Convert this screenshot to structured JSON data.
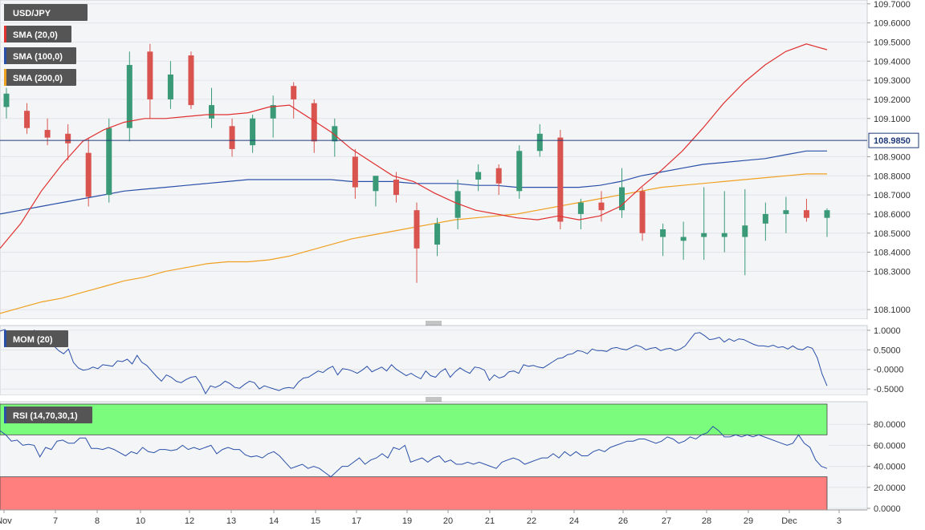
{
  "chart_data": [
    {
      "type": "candlestick",
      "symbol": "USD/JPY",
      "current_price": "108.9850",
      "ylim": [
        108.05,
        109.72
      ],
      "yticks": [
        "109.7000",
        "109.6000",
        "109.5000",
        "109.4000",
        "109.3000",
        "109.2000",
        "109.1000",
        "108.9000",
        "108.8000",
        "108.7000",
        "108.6000",
        "108.5000",
        "108.4000",
        "108.3000",
        "108.1000"
      ],
      "ytick_values": [
        109.7,
        109.6,
        109.5,
        109.4,
        109.3,
        109.2,
        109.1,
        108.9,
        108.8,
        108.7,
        108.6,
        108.5,
        108.4,
        108.3,
        108.1
      ],
      "xticks": [
        "Nov",
        "7",
        "8",
        "10",
        "12",
        "13",
        "14",
        "15",
        "17",
        "19",
        "20",
        "21",
        "22",
        "24",
        "26",
        "27",
        "28",
        "29",
        "Dec",
        "3"
      ],
      "legend": [
        {
          "label": "USD/JPY",
          "color": "#555555"
        },
        {
          "label": "SMA (20,0)",
          "color": "#e03030"
        },
        {
          "label": "SMA (100,0)",
          "color": "#2a4fa8"
        },
        {
          "label": "SMA (200,0)",
          "color": "#f0a020"
        }
      ],
      "colors": {
        "up": "#3a9a78",
        "down": "#d9534f",
        "sma20": "#e03030",
        "sma100": "#2a4fa8",
        "sma200": "#f0a020",
        "price_line": "#1e3a78"
      },
      "sma20": [
        108.42,
        108.55,
        108.72,
        108.86,
        108.98,
        109.04,
        109.08,
        109.1,
        109.1,
        109.11,
        109.12,
        109.12,
        109.13,
        109.16,
        109.17,
        109.1,
        109.03,
        108.94,
        108.87,
        108.8,
        108.77,
        108.71,
        108.66,
        108.62,
        108.6,
        108.58,
        108.57,
        108.59,
        108.57,
        108.59,
        108.64,
        108.74,
        108.83,
        108.93,
        109.05,
        109.18,
        109.29,
        109.38,
        109.45,
        109.49,
        109.46
      ],
      "sma100": [
        108.6,
        108.62,
        108.64,
        108.66,
        108.68,
        108.7,
        108.72,
        108.73,
        108.74,
        108.75,
        108.76,
        108.77,
        108.78,
        108.78,
        108.78,
        108.78,
        108.78,
        108.77,
        108.77,
        108.77,
        108.76,
        108.76,
        108.76,
        108.75,
        108.75,
        108.74,
        108.74,
        108.74,
        108.74,
        108.75,
        108.77,
        108.8,
        108.82,
        108.84,
        108.86,
        108.87,
        108.88,
        108.89,
        108.91,
        108.93,
        108.93
      ],
      "sma200": [
        108.08,
        108.11,
        108.14,
        108.16,
        108.19,
        108.22,
        108.25,
        108.27,
        108.3,
        108.32,
        108.34,
        108.35,
        108.35,
        108.36,
        108.38,
        108.41,
        108.44,
        108.47,
        108.49,
        108.51,
        108.53,
        108.55,
        108.57,
        108.58,
        108.59,
        108.6,
        108.62,
        108.64,
        108.66,
        108.68,
        108.7,
        108.72,
        108.74,
        108.75,
        108.76,
        108.77,
        108.78,
        108.79,
        108.8,
        108.81,
        108.81
      ],
      "candles": [
        {
          "o": 109.16,
          "h": 109.26,
          "l": 109.1,
          "c": 109.23
        },
        {
          "o": 109.14,
          "h": 109.18,
          "l": 109.02,
          "c": 109.05
        },
        {
          "o": 109.04,
          "h": 109.1,
          "l": 108.96,
          "c": 109.0
        },
        {
          "o": 109.02,
          "h": 109.07,
          "l": 108.88,
          "c": 108.97
        },
        {
          "o": 108.92,
          "h": 109.0,
          "l": 108.64,
          "c": 108.69
        },
        {
          "o": 108.7,
          "h": 109.1,
          "l": 108.66,
          "c": 109.05
        },
        {
          "o": 109.05,
          "h": 109.45,
          "l": 108.98,
          "c": 109.38
        },
        {
          "o": 109.45,
          "h": 109.49,
          "l": 109.1,
          "c": 109.2
        },
        {
          "o": 109.2,
          "h": 109.4,
          "l": 109.15,
          "c": 109.33
        },
        {
          "o": 109.43,
          "h": 109.45,
          "l": 109.15,
          "c": 109.17
        },
        {
          "o": 109.1,
          "h": 109.26,
          "l": 109.05,
          "c": 109.17
        },
        {
          "o": 109.06,
          "h": 109.1,
          "l": 108.9,
          "c": 108.94
        },
        {
          "o": 108.96,
          "h": 109.12,
          "l": 108.92,
          "c": 109.1
        },
        {
          "o": 109.1,
          "h": 109.22,
          "l": 109.0,
          "c": 109.17
        },
        {
          "o": 109.27,
          "h": 109.29,
          "l": 109.1,
          "c": 109.2
        },
        {
          "o": 109.18,
          "h": 109.2,
          "l": 108.92,
          "c": 108.98
        },
        {
          "o": 108.98,
          "h": 109.1,
          "l": 108.9,
          "c": 109.06
        },
        {
          "o": 108.9,
          "h": 108.94,
          "l": 108.68,
          "c": 108.74
        },
        {
          "o": 108.72,
          "h": 108.8,
          "l": 108.64,
          "c": 108.8
        },
        {
          "o": 108.78,
          "h": 108.82,
          "l": 108.66,
          "c": 108.7
        },
        {
          "o": 108.62,
          "h": 108.66,
          "l": 108.24,
          "c": 108.42
        },
        {
          "o": 108.44,
          "h": 108.58,
          "l": 108.38,
          "c": 108.55
        },
        {
          "o": 108.58,
          "h": 108.78,
          "l": 108.52,
          "c": 108.72
        },
        {
          "o": 108.78,
          "h": 108.86,
          "l": 108.72,
          "c": 108.82
        },
        {
          "o": 108.84,
          "h": 108.86,
          "l": 108.7,
          "c": 108.76
        },
        {
          "o": 108.72,
          "h": 108.96,
          "l": 108.68,
          "c": 108.93
        },
        {
          "o": 108.93,
          "h": 109.07,
          "l": 108.9,
          "c": 109.02
        },
        {
          "o": 109.0,
          "h": 109.04,
          "l": 108.52,
          "c": 108.56
        },
        {
          "o": 108.6,
          "h": 108.68,
          "l": 108.52,
          "c": 108.66
        },
        {
          "o": 108.66,
          "h": 108.72,
          "l": 108.56,
          "c": 108.62
        },
        {
          "o": 108.62,
          "h": 108.84,
          "l": 108.58,
          "c": 108.74
        },
        {
          "o": 108.72,
          "h": 108.74,
          "l": 108.46,
          "c": 108.5
        },
        {
          "o": 108.48,
          "h": 108.55,
          "l": 108.38,
          "c": 108.52
        },
        {
          "o": 108.46,
          "h": 108.56,
          "l": 108.36,
          "c": 108.48
        },
        {
          "o": 108.48,
          "h": 108.74,
          "l": 108.36,
          "c": 108.5
        },
        {
          "o": 108.48,
          "h": 108.72,
          "l": 108.4,
          "c": 108.5
        },
        {
          "o": 108.48,
          "h": 108.73,
          "l": 108.28,
          "c": 108.54
        },
        {
          "o": 108.55,
          "h": 108.66,
          "l": 108.46,
          "c": 108.6
        },
        {
          "o": 108.6,
          "h": 108.69,
          "l": 108.5,
          "c": 108.62
        },
        {
          "o": 108.62,
          "h": 108.68,
          "l": 108.56,
          "c": 108.58
        },
        {
          "o": 108.58,
          "h": 108.63,
          "l": 108.48,
          "c": 108.62
        }
      ]
    },
    {
      "type": "line",
      "title": "MOM (20)",
      "ylim": [
        -0.62,
        1.08
      ],
      "yticks": [
        "1.0000",
        "0.5000",
        "-0.0000",
        "-0.5000"
      ],
      "ytick_values": [
        1.0,
        0.5,
        0.0,
        -0.5
      ],
      "color": "#2a4fa8",
      "values": [
        0.98,
        1.02,
        0.88,
        0.92,
        0.7,
        0.9,
        0.86,
        1.0,
        0.88,
        0.8,
        0.72,
        0.6,
        0.48,
        0.4,
        0.52,
        0.18,
        0.04,
        -0.02,
        0.0,
        0.06,
        0.02,
        0.12,
        0.1,
        0.08,
        0.22,
        0.2,
        0.26,
        0.14,
        0.36,
        0.18,
        0.1,
        -0.04,
        -0.18,
        -0.3,
        -0.14,
        -0.2,
        -0.3,
        -0.34,
        -0.26,
        -0.2,
        -0.18,
        -0.36,
        -0.62,
        -0.42,
        -0.46,
        -0.4,
        -0.3,
        -0.36,
        -0.46,
        -0.48,
        -0.38,
        -0.3,
        -0.34,
        -0.5,
        -0.42,
        -0.46,
        -0.5,
        -0.54,
        -0.48,
        -0.46,
        -0.48,
        -0.32,
        -0.22,
        -0.2,
        -0.12,
        -0.04,
        -0.08,
        0.02,
        0.08,
        -0.14,
        0.02,
        0.0,
        -0.04,
        -0.1,
        -0.02,
        0.08,
        -0.06,
        0.0,
        0.06,
        -0.04,
        0.12,
        0.0,
        -0.08,
        -0.16,
        -0.1,
        -0.18,
        -0.24,
        -0.04,
        -0.16,
        -0.2,
        -0.06,
        0.02,
        -0.2,
        -0.06,
        0.04,
        -0.04,
        -0.1,
        0.06,
        0.04,
        -0.02,
        -0.28,
        -0.14,
        -0.22,
        -0.18,
        -0.06,
        -0.04,
        -0.1,
        0.12,
        0.08,
        0.1,
        0.06,
        0.04,
        0.12,
        0.2,
        0.28,
        0.3,
        0.38,
        0.4,
        0.48,
        0.46,
        0.4,
        0.52,
        0.48,
        0.48,
        0.46,
        0.54,
        0.56,
        0.52,
        0.5,
        0.56,
        0.62,
        0.58,
        0.5,
        0.54,
        0.56,
        0.48,
        0.52,
        0.54,
        0.48,
        0.52,
        0.6,
        0.76,
        0.92,
        0.94,
        0.86,
        0.76,
        0.78,
        0.82,
        0.7,
        0.78,
        0.72,
        0.78,
        0.76,
        0.7,
        0.64,
        0.6,
        0.6,
        0.58,
        0.62,
        0.56,
        0.58,
        0.52,
        0.6,
        0.52,
        0.5,
        0.58,
        0.54,
        0.3,
        -0.12,
        -0.42
      ]
    },
    {
      "type": "line",
      "title": "RSI (14,70,30,1)",
      "ylim": [
        0,
        100
      ],
      "yticks": [
        "80.0000",
        "60.0000",
        "40.0000",
        "20.0000",
        "0.0000"
      ],
      "ytick_values": [
        80,
        60,
        40,
        20,
        0
      ],
      "overbought": 70,
      "oversold": 30,
      "color": "#2a4fa8",
      "zone_colors": {
        "overbought": "#7cfc7c",
        "oversold": "#ff7f7f"
      },
      "values": [
        74,
        70,
        64,
        65,
        60,
        61,
        60,
        49,
        58,
        56,
        64,
        65,
        62,
        62,
        67,
        67,
        57,
        57,
        56,
        58,
        56,
        53,
        50,
        54,
        52,
        58,
        54,
        53,
        56,
        56,
        55,
        56,
        60,
        56,
        58,
        56,
        58,
        60,
        52,
        56,
        58,
        56,
        56,
        51,
        49,
        50,
        48,
        52,
        54,
        50,
        44,
        38,
        40,
        42,
        38,
        40,
        38,
        34,
        30,
        35,
        40,
        40,
        44,
        48,
        42,
        46,
        48,
        52,
        48,
        58,
        56,
        60,
        44,
        46,
        48,
        44,
        48,
        50,
        44,
        46,
        42,
        42,
        44,
        42,
        44,
        42,
        40,
        38,
        44,
        46,
        48,
        46,
        42,
        44,
        46,
        48,
        48,
        52,
        48,
        54,
        50,
        54,
        50,
        50,
        54,
        56,
        54,
        58,
        60,
        62,
        64,
        64,
        66,
        66,
        64,
        62,
        64,
        68,
        66,
        62,
        64,
        68,
        66,
        70,
        72,
        78,
        74,
        68,
        68,
        70,
        68,
        70,
        68,
        70,
        68,
        66,
        64,
        62,
        60,
        62,
        70,
        62,
        58,
        46,
        40,
        38
      ]
    }
  ],
  "layout": {
    "separator_icon": "drag-handle-icon"
  }
}
